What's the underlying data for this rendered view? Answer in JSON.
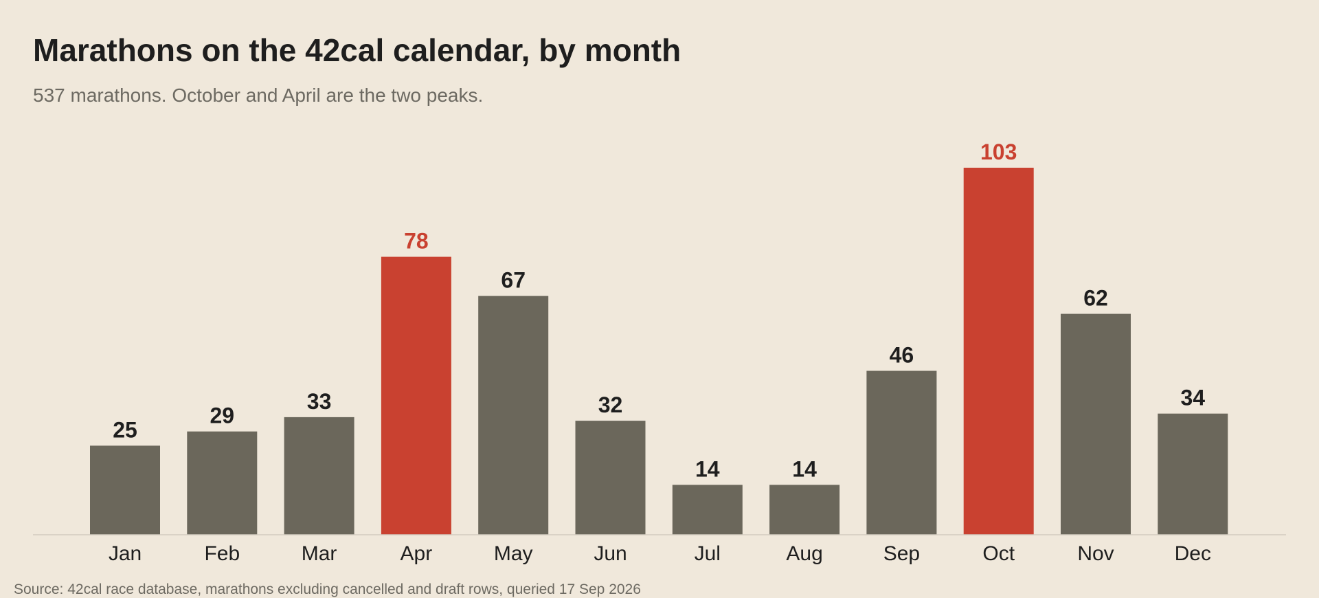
{
  "title": "Marathons on the 42cal calendar, by month",
  "subtitle": "537 marathons. October and April are the two peaks.",
  "source": "Source: 42cal race database, marathons excluding cancelled and draft rows, queried 17 Sep 2026",
  "colors": {
    "background": "#f0e8db",
    "bar": "#6b675b",
    "highlight": "#c94130",
    "text": "#1e1e1e",
    "muted": "#6d6a62",
    "axis": "#d2cbbf"
  },
  "chart_data": {
    "type": "bar",
    "title": "Marathons on the 42cal calendar, by month",
    "subtitle": "537 marathons. October and April are the two peaks.",
    "categories": [
      "Jan",
      "Feb",
      "Mar",
      "Apr",
      "May",
      "Jun",
      "Jul",
      "Aug",
      "Sep",
      "Oct",
      "Nov",
      "Dec"
    ],
    "values": [
      25,
      29,
      33,
      78,
      67,
      32,
      14,
      14,
      46,
      103,
      62,
      34
    ],
    "highlighted": [
      "Apr",
      "Oct"
    ],
    "xlabel": "",
    "ylabel": "",
    "ylim": [
      0,
      103
    ],
    "grid": false,
    "legend": "none",
    "data_labels": true
  }
}
